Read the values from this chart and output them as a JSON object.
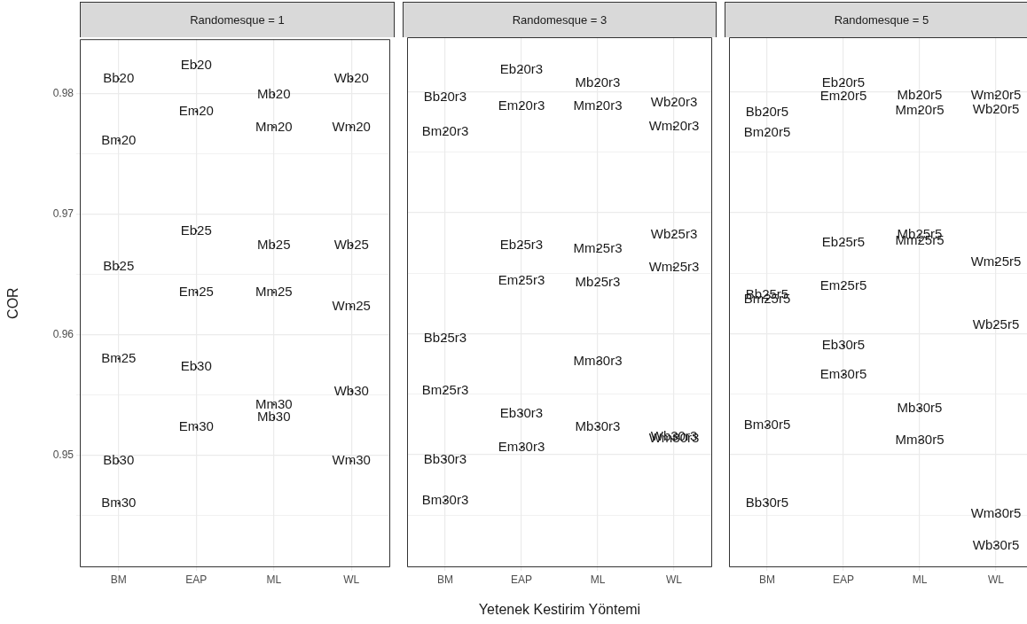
{
  "chart_data": [
    {
      "type": "scatter",
      "title": "Randomesque = 1",
      "ylabel": "COR",
      "categories": [
        "BM",
        "EAP",
        "ML",
        "WL"
      ],
      "ylim": [
        0.9407,
        0.9845
      ],
      "yticks": [
        {
          "value": 0.945,
          "label": null
        },
        0.95,
        {
          "value": 0.955,
          "label": null
        },
        0.96,
        {
          "value": 0.965,
          "label": null
        },
        0.97,
        {
          "value": 0.975,
          "label": null
        },
        0.98
      ],
      "grid": true,
      "legend": false,
      "series": [
        {
          "color": "#1a1a1a",
          "x": [
            "BM",
            "BM",
            "EAP",
            "EAP",
            "ML",
            "ML",
            "WL",
            "WL",
            "BM",
            "EAP",
            "EAP",
            "ML",
            "ML",
            "WL",
            "WL",
            "BM",
            "EAP",
            "ML",
            "ML",
            "WL",
            "EAP",
            "BM",
            "WL",
            "BM"
          ],
          "values": [
            0.9812,
            0.9761,
            0.9823,
            0.9785,
            0.9799,
            0.9772,
            0.9812,
            0.9772,
            0.9656,
            0.9686,
            0.9635,
            0.9674,
            0.9635,
            0.9674,
            0.9623,
            0.958,
            0.9573,
            0.9542,
            0.9531,
            0.9553,
            0.9523,
            0.9495,
            0.9495,
            0.946
          ],
          "value_labels": [
            "Bb20",
            "Bm20",
            "Eb20",
            "Em20",
            "Mb20",
            "Mm20",
            "Wb20",
            "Wm20",
            "Bb25",
            "Eb25",
            "Em25",
            "Mb25",
            "Mm25",
            "Wb25",
            "Wm25",
            "Bm25",
            "Eb30",
            "Mm30",
            "Mb30",
            "Wb30",
            "Em30",
            "Bb30",
            "Wm30",
            "Bm30"
          ]
        }
      ]
    },
    {
      "type": "scatter",
      "title": "Randomesque = 3",
      "xlabel": "Yetenek Kestirim Yöntemi",
      "categories": [
        "BM",
        "EAP",
        "ML",
        "WL"
      ],
      "ylim": [
        0.9407,
        0.9845
      ],
      "yticks": [
        {
          "value": 0.945,
          "label": null
        },
        0.95,
        {
          "value": 0.955,
          "label": null
        },
        0.96,
        {
          "value": 0.965,
          "label": null
        },
        0.97,
        {
          "value": 0.975,
          "label": null
        },
        0.98
      ],
      "tick_labels": "x",
      "grid": true,
      "legend": false,
      "series": [
        {
          "color": "#1a1a1a",
          "x": [
            "BM",
            "BM",
            "EAP",
            "EAP",
            "ML",
            "ML",
            "WL",
            "WL",
            "WL",
            "WL",
            "EAP",
            "ML",
            "EAP",
            "ML",
            "BM",
            "ML",
            "BM",
            "EAP",
            "ML",
            "WL",
            "WL",
            "EAP",
            "BM",
            "BM"
          ],
          "values": [
            0.9795,
            0.9767,
            0.9818,
            0.9788,
            0.9807,
            0.9788,
            0.9791,
            0.9771,
            0.9682,
            0.9655,
            0.9673,
            0.967,
            0.9644,
            0.9642,
            0.9596,
            0.9577,
            0.9553,
            0.9534,
            0.9523,
            0.9515,
            0.9513,
            0.9506,
            0.9496,
            0.9462
          ],
          "value_labels": [
            "Bb20r3",
            "Bm20r3",
            "Eb20r3",
            "Em20r3",
            "Mb20r3",
            "Mm20r3",
            "Wb20r3",
            "Wm20r3",
            "Wb25r3",
            "Wm25r3",
            "Eb25r3",
            "Mm25r3",
            "Em25r3",
            "Mb25r3",
            "Bb25r3",
            "Mm30r3",
            "Bm25r3",
            "Eb30r3",
            "Mb30r3",
            "Wb30r3",
            "Wm30r3",
            "Em30r3",
            "Bb30r3",
            "Bm30r3"
          ]
        }
      ]
    },
    {
      "type": "scatter",
      "title": "Randomesque = 5",
      "categories": [
        "BM",
        "EAP",
        "ML",
        "WL"
      ],
      "ylim": [
        0.9407,
        0.9845
      ],
      "yticks": [
        {
          "value": 0.945,
          "label": null
        },
        0.95,
        {
          "value": 0.955,
          "label": null
        },
        0.96,
        {
          "value": 0.965,
          "label": null
        },
        0.97,
        {
          "value": 0.975,
          "label": null
        },
        0.98
      ],
      "tick_labels": "x",
      "grid": true,
      "legend": false,
      "series": [
        {
          "color": "#1a1a1a",
          "x": [
            "EAP",
            "EAP",
            "ML",
            "WL",
            "ML",
            "WL",
            "BM",
            "BM",
            "ML",
            "ML",
            "EAP",
            "WL",
            "BM",
            "BM",
            "EAP",
            "WL",
            "EAP",
            "EAP",
            "ML",
            "BM",
            "ML",
            "BM",
            "WL",
            "WL"
          ],
          "values": [
            0.9807,
            0.9796,
            0.9797,
            0.9797,
            0.9784,
            0.9785,
            0.9783,
            0.9766,
            0.9682,
            0.9677,
            0.9675,
            0.9659,
            0.9632,
            0.9628,
            0.9639,
            0.9607,
            0.959,
            0.9566,
            0.9538,
            0.9524,
            0.9512,
            0.946,
            0.9451,
            0.9425
          ],
          "value_labels": [
            "Eb20r5",
            "Em20r5",
            "Mb20r5",
            "Wm20r5",
            "Mm20r5",
            "Wb20r5",
            "Bb20r5",
            "Bm20r5",
            "Mb25r5",
            "Mm25r5",
            "Eb25r5",
            "Wm25r5",
            "Bb25r5",
            "Bm25r5",
            "Em25r5",
            "Wb25r5",
            "Eb30r5",
            "Em30r5",
            "Mb30r5",
            "Bm30r5",
            "Mm30r5",
            "Bb30r5",
            "Wm30r5",
            "Wb30r5"
          ]
        }
      ]
    }
  ]
}
